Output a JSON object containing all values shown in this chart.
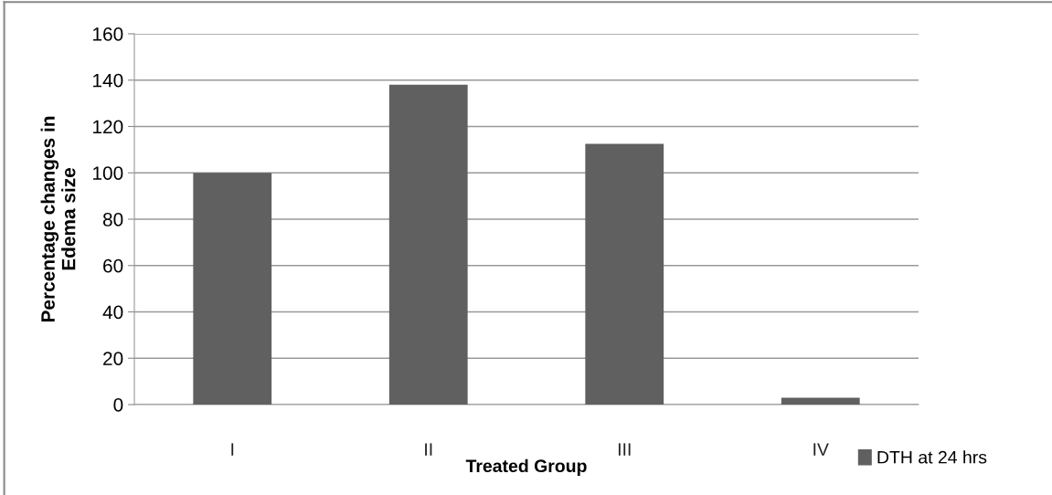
{
  "chart_data": {
    "type": "bar",
    "xlabel": "Treated Group",
    "ylabel": "Percentage changes in\nEdema size",
    "categories": [
      "I",
      "II",
      "III",
      "IV"
    ],
    "series": [
      {
        "name": "DTH at 24 hrs",
        "color": "#606060",
        "values": [
          100,
          138,
          112.5,
          3
        ]
      }
    ],
    "ylim": [
      0,
      160
    ],
    "yticks": [
      0,
      20,
      40,
      60,
      80,
      100,
      120,
      140,
      160
    ],
    "grid": "y",
    "legend": "bottom right"
  }
}
